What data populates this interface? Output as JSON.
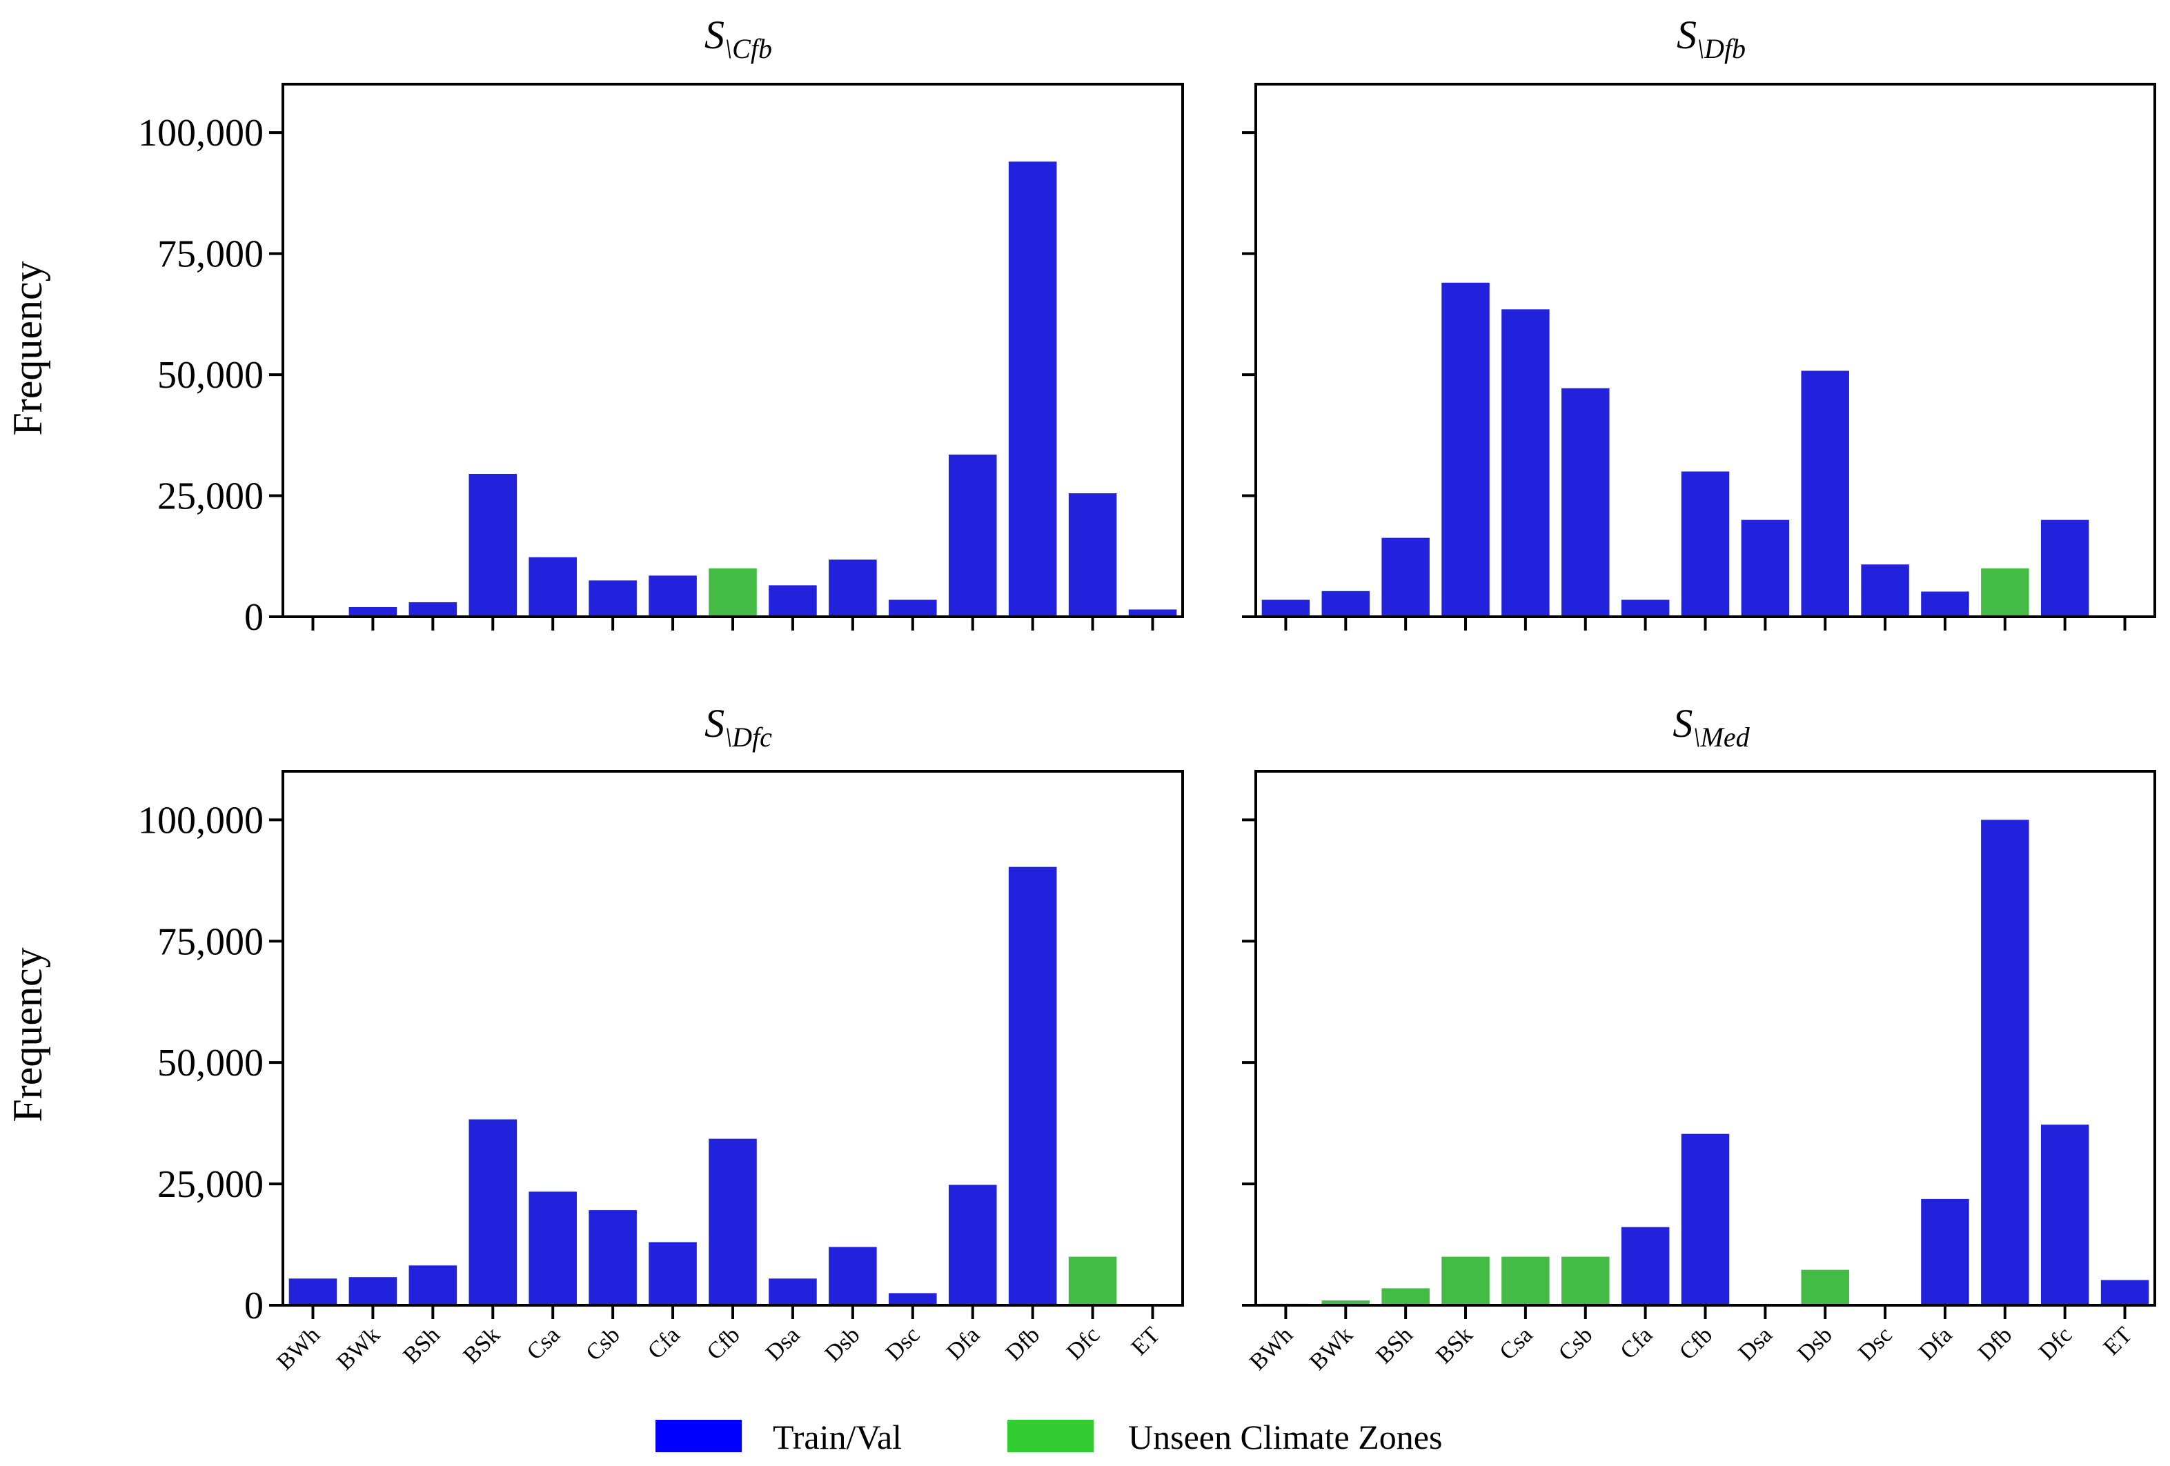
{
  "figure": {
    "ylabel": "Frequency",
    "legend": {
      "placement": "bottom-center",
      "items": [
        {
          "label": "Train/Val",
          "color": "#0000ff"
        },
        {
          "label": "Unseen Climate Zones",
          "color": "#33cc33"
        }
      ]
    }
  },
  "colors": {
    "train": "#2222dd",
    "unseen": "#44bb44",
    "axis": "#000000"
  },
  "chart_data": [
    {
      "type": "bar",
      "title": "S\\Cfb",
      "title_main": "S",
      "title_sub": "\\Cfb",
      "ylabel": "Frequency",
      "ylim": [
        0,
        110000
      ],
      "yticks": [
        0,
        25000,
        50000,
        75000,
        100000
      ],
      "ytick_labels": [
        "0",
        "25,000",
        "50,000",
        "75,000",
        "100,000"
      ],
      "categories": [
        "BWh",
        "BWk",
        "BSh",
        "BSk",
        "Csa",
        "Csb",
        "Cfa",
        "Cfb",
        "Dsa",
        "Dsb",
        "Dsc",
        "Dfa",
        "Dfb",
        "Dfc",
        "ET"
      ],
      "values": [
        0,
        2000,
        3000,
        29500,
        12300,
        7500,
        8500,
        10000,
        6500,
        11800,
        3500,
        33500,
        94000,
        25500,
        1500
      ],
      "groups": [
        "train",
        "train",
        "train",
        "train",
        "train",
        "train",
        "train",
        "unseen",
        "train",
        "train",
        "train",
        "train",
        "train",
        "train",
        "train"
      ]
    },
    {
      "type": "bar",
      "title": "S\\Dfb",
      "title_main": "S",
      "title_sub": "\\Dfb",
      "ylim": [
        0,
        110000
      ],
      "yticks": [
        0,
        25000,
        50000,
        75000,
        100000
      ],
      "categories": [
        "BWh",
        "BWk",
        "BSh",
        "BSk",
        "Csa",
        "Csb",
        "Cfa",
        "Cfb",
        "Dsa",
        "Dsb",
        "Dsc",
        "Dfa",
        "Dfb",
        "Dfc",
        "ET"
      ],
      "values": [
        3500,
        5300,
        16300,
        69000,
        63500,
        47200,
        3500,
        30000,
        20000,
        50800,
        10800,
        5200,
        10000,
        20000,
        0
      ],
      "groups": [
        "train",
        "train",
        "train",
        "train",
        "train",
        "train",
        "train",
        "train",
        "train",
        "train",
        "train",
        "train",
        "unseen",
        "train",
        "train"
      ]
    },
    {
      "type": "bar",
      "title": "S\\Dfc",
      "title_main": "S",
      "title_sub": "\\Dfc",
      "ylabel": "Frequency",
      "ylim": [
        0,
        110000
      ],
      "yticks": [
        0,
        25000,
        50000,
        75000,
        100000
      ],
      "ytick_labels": [
        "0",
        "25,000",
        "50,000",
        "75,000",
        "100,000"
      ],
      "categories": [
        "BWh",
        "BWk",
        "BSh",
        "BSk",
        "Csa",
        "Csb",
        "Cfa",
        "Cfb",
        "Dsa",
        "Dsb",
        "Dsc",
        "Dfa",
        "Dfb",
        "Dfc",
        "ET"
      ],
      "values": [
        5500,
        5800,
        8200,
        38300,
        23400,
        19600,
        13000,
        34300,
        5500,
        12000,
        2500,
        24800,
        90300,
        10000,
        0
      ],
      "groups": [
        "train",
        "train",
        "train",
        "train",
        "train",
        "train",
        "train",
        "train",
        "train",
        "train",
        "train",
        "train",
        "train",
        "unseen",
        "train"
      ]
    },
    {
      "type": "bar",
      "title": "S\\Med",
      "title_main": "S",
      "title_sub": "\\Med",
      "ylim": [
        0,
        110000
      ],
      "yticks": [
        0,
        25000,
        50000,
        75000,
        100000
      ],
      "categories": [
        "BWh",
        "BWk",
        "BSh",
        "BSk",
        "Csa",
        "Csb",
        "Cfa",
        "Cfb",
        "Dsa",
        "Dsb",
        "Dsc",
        "Dfa",
        "Dfb",
        "Dfc",
        "ET"
      ],
      "values": [
        300,
        1000,
        3500,
        10000,
        10000,
        10000,
        16100,
        35300,
        0,
        7300,
        0,
        21900,
        100000,
        37200,
        5200
      ],
      "groups": [
        "train",
        "unseen",
        "unseen",
        "unseen",
        "unseen",
        "unseen",
        "train",
        "train",
        "unseen",
        "unseen",
        "unseen",
        "train",
        "train",
        "train",
        "train"
      ]
    }
  ]
}
